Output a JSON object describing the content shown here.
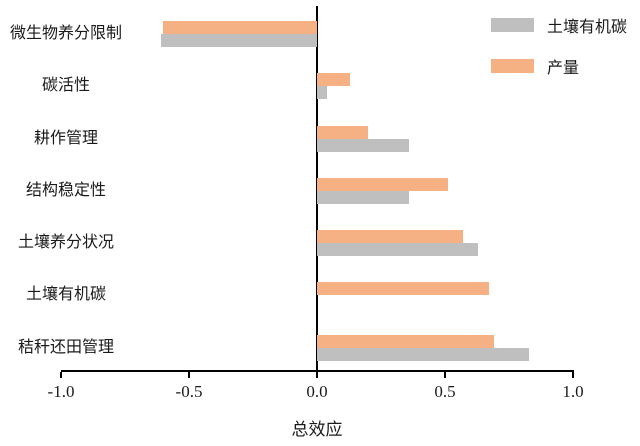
{
  "chart_data": {
    "type": "bar",
    "orientation": "horizontal",
    "title": "",
    "xlabel": "总效应",
    "ylabel": "",
    "xlim": [
      -1.0,
      1.0
    ],
    "x_ticks": [
      "-1.0",
      "-0.5",
      "0.0",
      "0.5",
      "1.0"
    ],
    "x_tick_values": [
      -1.0,
      -0.5,
      0.0,
      0.5,
      1.0
    ],
    "grid": false,
    "zero_line": true,
    "categories": [
      "微生物养分限制",
      "碳活性",
      "耕作管理",
      "结构稳定性",
      "土壤养分状况",
      "土壤有机碳",
      "秸秆还田管理"
    ],
    "series": [
      {
        "name": "产量",
        "color": "#F5B183",
        "values": [
          -0.6,
          0.13,
          0.2,
          0.51,
          0.57,
          0.67,
          0.69
        ]
      },
      {
        "name": "土壤有机碳",
        "color": "#BFBFBF",
        "values": [
          -0.61,
          0.04,
          0.36,
          0.36,
          0.63,
          null,
          0.83
        ]
      }
    ],
    "legend_position": "top-right",
    "legend": [
      {
        "label": "土壤有机碳",
        "color": "#BFBFBF"
      },
      {
        "label": "产量",
        "color": "#F5B183"
      }
    ],
    "colors": {
      "axis": "#000000",
      "background": "#ffffff"
    }
  }
}
